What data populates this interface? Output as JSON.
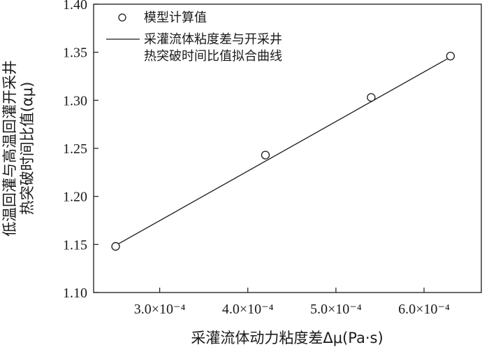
{
  "chart_data": {
    "type": "scatter",
    "xlabel": "采灌流体动力粘度差Δμ(Pa·s)",
    "ylabel_line1": "低温回灌与高温回灌开采井",
    "ylabel_line2": "热突破时间比值(αμ)",
    "xlim": [
      0.000225,
      0.000665
    ],
    "ylim": [
      1.1,
      1.4
    ],
    "x_ticks": [
      {
        "value": 0.0003,
        "label": "3.0×10⁻⁴"
      },
      {
        "value": 0.0004,
        "label": "4.0×10⁻⁴"
      },
      {
        "value": 0.0005,
        "label": "5.0×10⁻⁴"
      },
      {
        "value": 0.0006,
        "label": "6.0×10⁻⁴"
      }
    ],
    "y_ticks": [
      {
        "value": 1.1,
        "label": "1.10"
      },
      {
        "value": 1.15,
        "label": "1.15"
      },
      {
        "value": 1.2,
        "label": "1.20"
      },
      {
        "value": 1.25,
        "label": "1.25"
      },
      {
        "value": 1.3,
        "label": "1.30"
      },
      {
        "value": 1.35,
        "label": "1.35"
      },
      {
        "value": 1.4,
        "label": "1.40"
      }
    ],
    "series": [
      {
        "name": "模型计算值",
        "kind": "markers",
        "marker": "open-circle",
        "points": [
          {
            "x": 0.00025,
            "y": 1.148
          },
          {
            "x": 0.00042,
            "y": 1.243
          },
          {
            "x": 0.00054,
            "y": 1.303
          },
          {
            "x": 0.00063,
            "y": 1.346
          }
        ]
      },
      {
        "name_line1": "采灌流体粘度差与开采井",
        "name_line2": "热突破时间比值拟合曲线",
        "kind": "line",
        "points": [
          {
            "x": 0.00025,
            "y": 1.149
          },
          {
            "x": 0.00063,
            "y": 1.345
          }
        ]
      }
    ],
    "legend_position": "top-left",
    "grid": false,
    "colors": {
      "ink": "#1a1a1a",
      "background": "#ffffff"
    }
  }
}
